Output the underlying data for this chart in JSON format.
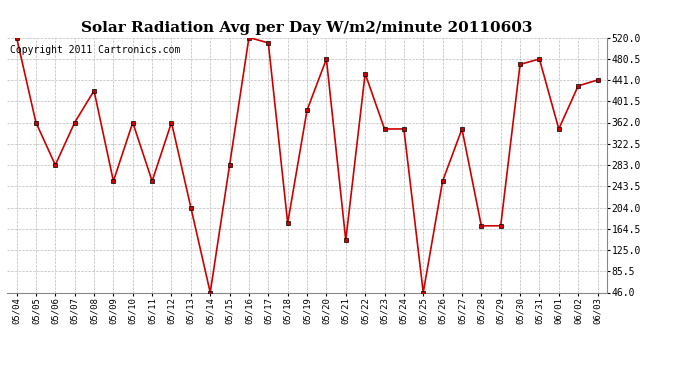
{
  "title": "Solar Radiation Avg per Day W/m2/minute 20110603",
  "copyright": "Copyright 2011 Cartronics.com",
  "dates": [
    "05/04",
    "05/05",
    "05/06",
    "05/07",
    "05/08",
    "05/09",
    "05/10",
    "05/11",
    "05/12",
    "05/13",
    "05/14",
    "05/15",
    "05/16",
    "05/17",
    "05/18",
    "05/19",
    "05/20",
    "05/21",
    "05/22",
    "05/23",
    "05/24",
    "05/25",
    "05/26",
    "05/27",
    "05/28",
    "05/29",
    "05/30",
    "05/31",
    "06/01",
    "06/02",
    "06/03"
  ],
  "values": [
    520,
    362,
    283,
    362,
    421,
    253,
    362,
    253,
    362,
    204,
    46,
    283,
    520,
    510,
    175,
    385,
    480,
    143,
    453,
    350,
    350,
    46,
    253,
    350,
    170,
    170,
    470,
    480,
    350,
    430,
    441
  ],
  "line_color": "#cc0000",
  "marker": "s",
  "marker_size": 3,
  "ylim_min": 46.0,
  "ylim_max": 520.0,
  "yticks": [
    46.0,
    85.5,
    125.0,
    164.5,
    204.0,
    243.5,
    283.0,
    322.5,
    362.0,
    401.5,
    441.0,
    480.5,
    520.0
  ],
  "ytick_labels": [
    "46.0",
    "85.5",
    "125.0",
    "164.5",
    "204.0",
    "243.5",
    "283.0",
    "322.5",
    "362.0",
    "401.5",
    "441.0",
    "480.5",
    "520.0"
  ],
  "background_color": "#ffffff",
  "grid_color": "#bbbbbb",
  "title_fontsize": 11,
  "tick_fontsize": 6.5,
  "copyright_fontsize": 7
}
